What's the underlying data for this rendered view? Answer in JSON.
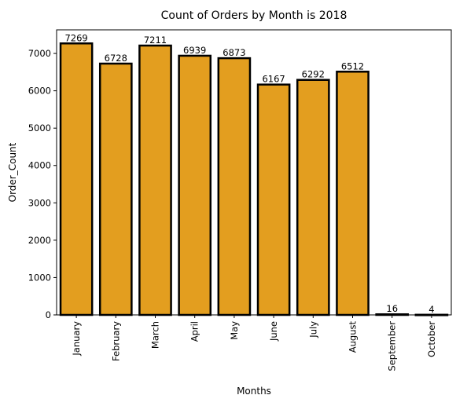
{
  "chart_data": {
    "type": "bar",
    "title": "Count of Orders by Month is 2018",
    "xlabel": "Months",
    "ylabel": "Order_Count",
    "categories": [
      "January",
      "February",
      "March",
      "April",
      "May",
      "June",
      "July",
      "August",
      "September",
      "October"
    ],
    "values": [
      7269,
      6728,
      7211,
      6939,
      6873,
      6167,
      6292,
      6512,
      16,
      4
    ],
    "ylim": [
      0,
      7632
    ],
    "yticks": [
      0,
      1000,
      2000,
      3000,
      4000,
      5000,
      6000,
      7000
    ],
    "grid": false,
    "legend": false,
    "bar_color": "#e39e1f",
    "edge_color": "#000000"
  }
}
